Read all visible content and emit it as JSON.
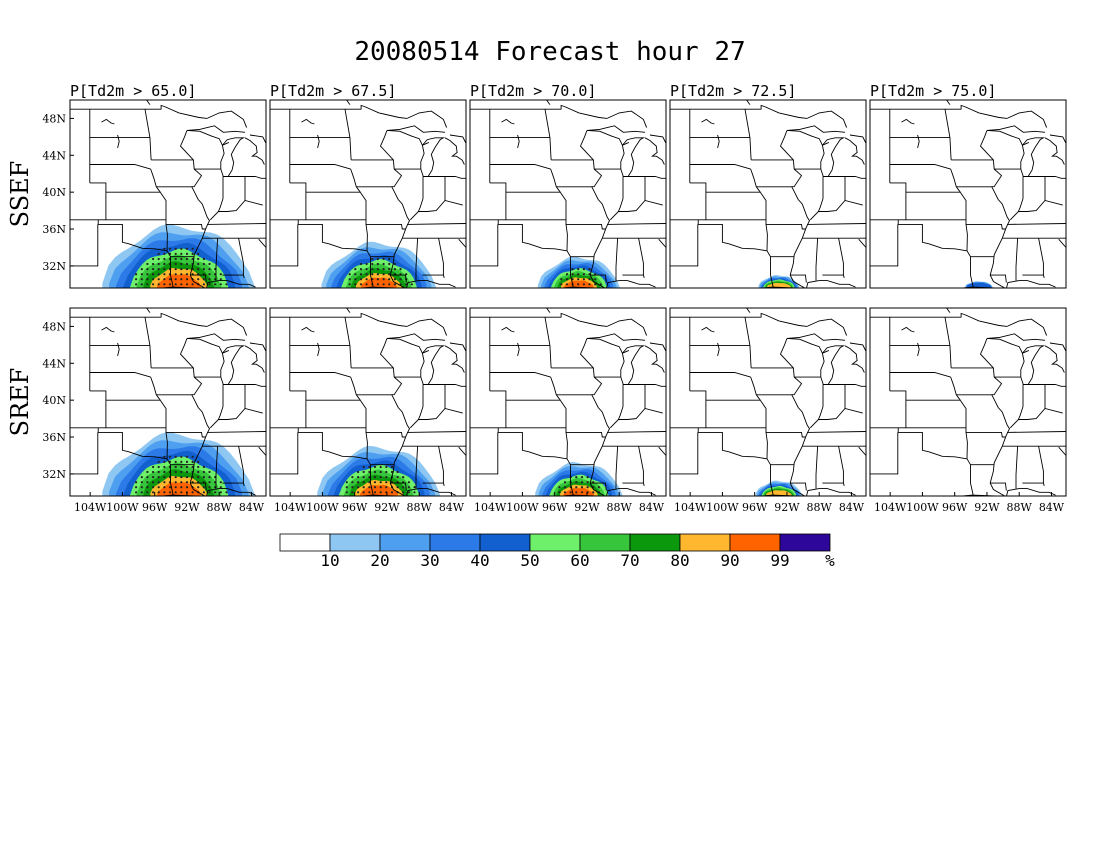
{
  "title": "20080514 Forecast hour 27",
  "columns": [
    {
      "label": "P[Td2m > 65.0]",
      "threshold": 65.0
    },
    {
      "label": "P[Td2m > 67.5]",
      "threshold": 67.5
    },
    {
      "label": "P[Td2m > 70.0]",
      "threshold": 70.0
    },
    {
      "label": "P[Td2m > 72.5]",
      "threshold": 72.5
    },
    {
      "label": "P[Td2m > 75.0]",
      "threshold": 75.0
    }
  ],
  "rows": [
    {
      "label": "SSEF"
    },
    {
      "label": "SREF"
    }
  ],
  "lat_ticks": [
    "48N",
    "44N",
    "40N",
    "36N",
    "32N"
  ],
  "lon_ticks": [
    "104W",
    "100W",
    "96W",
    "92W",
    "88W",
    "84W"
  ],
  "colorbar": {
    "colors": [
      "#ffffff",
      "#8fc7f3",
      "#4e9ff0",
      "#2b7ae8",
      "#125fd0",
      "#6ff06b",
      "#36c53b",
      "#0c980d",
      "#ffb72f",
      "#ff6300",
      "#2c079a"
    ],
    "labels": [
      "10",
      "20",
      "30",
      "40",
      "50",
      "60",
      "70",
      "80",
      "90",
      "99",
      "%"
    ]
  },
  "map_data": {
    "SSEF": [
      {
        "threshold": 65.0,
        "extent": 1.0
      },
      {
        "threshold": 67.5,
        "extent": 0.72
      },
      {
        "threshold": 70.0,
        "extent": 0.48
      },
      {
        "threshold": 72.5,
        "extent": 0.18
      },
      {
        "threshold": 75.0,
        "extent": 0.08
      }
    ],
    "SREF": [
      {
        "threshold": 65.0,
        "extent": 1.0
      },
      {
        "threshold": 67.5,
        "extent": 0.78
      },
      {
        "threshold": 70.0,
        "extent": 0.52
      },
      {
        "threshold": 72.5,
        "extent": 0.22
      },
      {
        "threshold": 75.0,
        "extent": 0.04
      }
    ]
  }
}
